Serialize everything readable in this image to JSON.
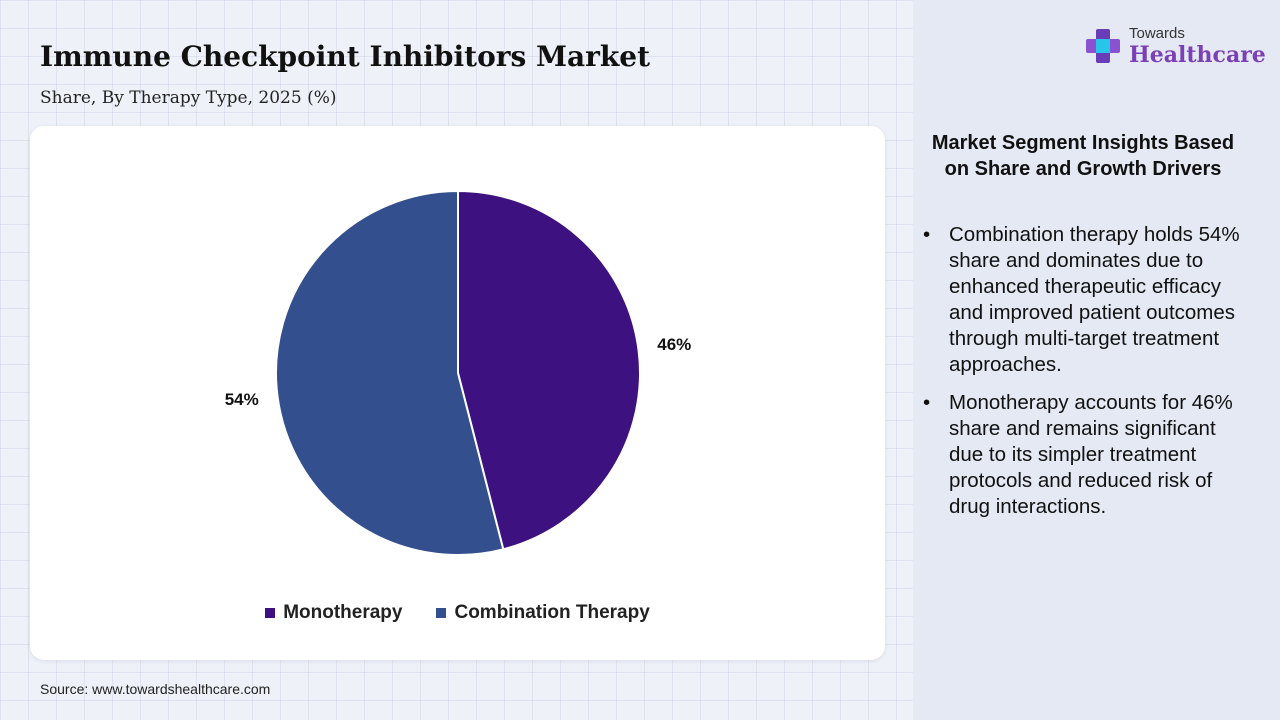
{
  "header": {
    "title": "Immune Checkpoint Inhibitors Market",
    "subtitle": "Share, By Therapy Type, 2025 (%)"
  },
  "source": "Source: www.towardshealthcare.com",
  "logo": {
    "line1": "Towards",
    "line2": "Healthcare",
    "icon": "cross-logo-icon"
  },
  "insights": {
    "title": "Market Segment Insights Based on Share and Growth Drivers",
    "bullet": "•",
    "items": [
      "Combination therapy holds 54% share and dominates due to enhanced therapeutic efficacy and improved patient outcomes through multi-target treatment approaches.",
      "Monotherapy accounts for 46% share and remains significant due to its simpler treatment protocols and reduced risk of drug interactions."
    ]
  },
  "chart_data": {
    "type": "pie",
    "title": "Immune Checkpoint Inhibitors Market",
    "subtitle": "Share, By Therapy Type, 2025 (%)",
    "categories": [
      "Monotherapy",
      "Combination Therapy"
    ],
    "values": [
      46,
      54
    ],
    "labels": [
      "46%",
      "54%"
    ],
    "colors": [
      "#3e1180",
      "#334f8d"
    ],
    "legend_position": "bottom",
    "start_angle": "12 o'clock",
    "direction": "clockwise"
  }
}
